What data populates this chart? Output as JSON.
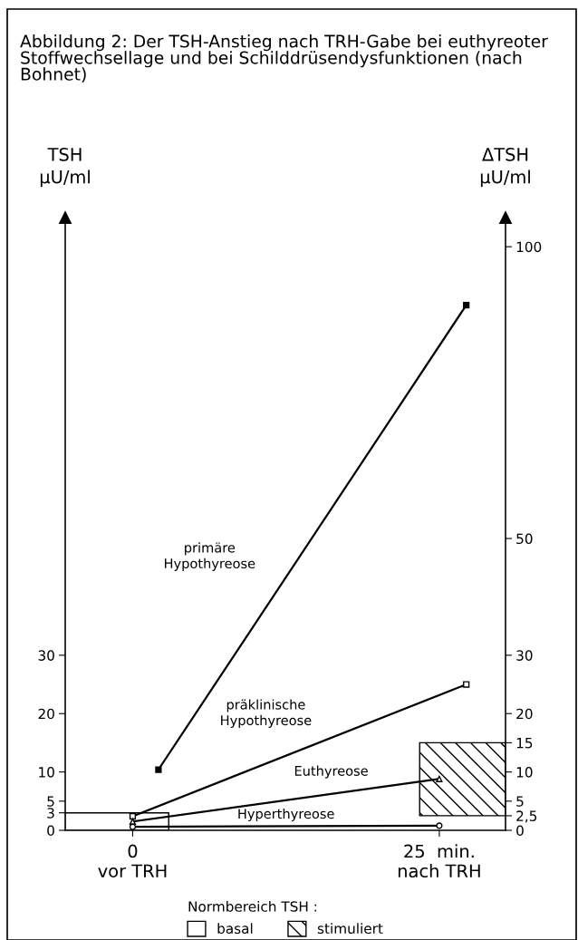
{
  "chart_data": {
    "type": "line",
    "title": "Abbildung 2: Der TSH-Anstieg nach TRH-Gabe bei euthyreoter Stoffwechsellage und bei Schilddrüsendysfunktionen (nach Bohnet)",
    "ylabel": "TSH\nµU/ml",
    "y2label": "ΔTSH\nµU/ml",
    "xlim": [
      -5.5,
      30.4
    ],
    "xticks": [
      {
        "value": 0,
        "label": "0\nvor TRH"
      },
      {
        "value": 25,
        "label": "25  min.\nnach TRH"
      }
    ],
    "ylim": [
      0,
      105
    ],
    "yticks": [
      0,
      3,
      5,
      10,
      20,
      30
    ],
    "y2lim": [
      0,
      105
    ],
    "y2ticks": [
      0,
      {
        "value": 2.5,
        "label": "2,5"
      },
      5,
      10,
      15,
      20,
      30,
      50,
      100
    ],
    "series": [
      {
        "name": "primäre\nHypothyreose",
        "color": "#000000",
        "colors": [
          "#000000",
          "#000000"
        ],
        "marker": "square",
        "x": [
          2.1,
          27.2
        ],
        "values": [
          10.4,
          90
        ]
      },
      {
        "name": "präklinische\nHypothyreose",
        "color": "#000000",
        "colors": [
          "#ffffff",
          "#ffffff"
        ],
        "marker": "square",
        "x": [
          0,
          27.2
        ],
        "values": [
          2.4,
          25
        ]
      },
      {
        "name": "Euthyreose",
        "color": "#000000",
        "colors": [
          "#ffffff",
          "#ffffff"
        ],
        "marker": "triangle",
        "x": [
          0,
          25
        ],
        "values": [
          1.5,
          8.8
        ]
      },
      {
        "name": "Hyperthyreose",
        "color": "#000000",
        "colors": [
          "#ffffff",
          "#ffffff"
        ],
        "marker": "circle",
        "x": [
          0,
          25
        ],
        "values": [
          0.6,
          0.8
        ]
      }
    ],
    "bands": [
      {
        "axis": "y",
        "from": 0,
        "to": 3,
        "label": "basal",
        "color": "#000000"
      },
      {
        "axis": "y2",
        "from": 2.5,
        "to": 15,
        "label": "stimuliert",
        "color": "#000000"
      }
    ],
    "legend_title": "Normbereich TSH :",
    "legend": "bottom",
    "grid": false
  }
}
